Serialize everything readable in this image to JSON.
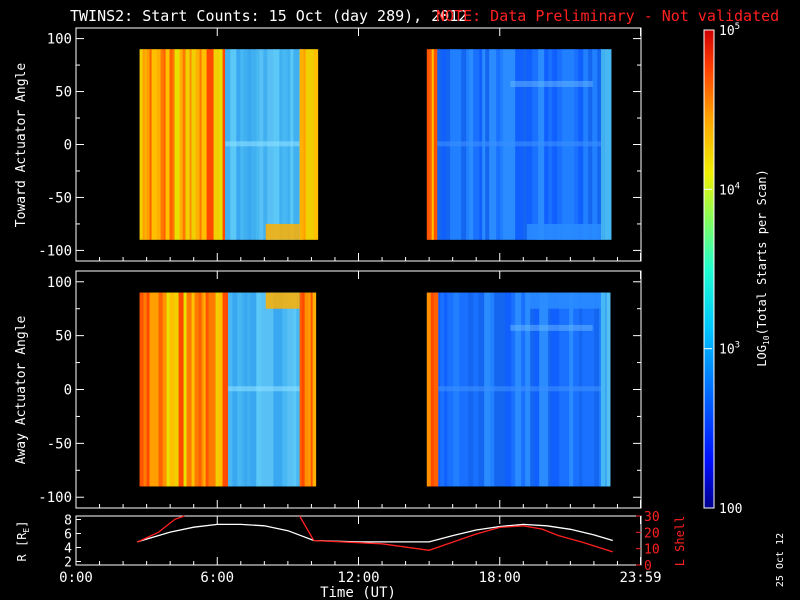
{
  "title": "TWINS2: Start Counts: 15 Oct (day 289), 2012",
  "note": "NOTE: Data Preliminary - Not validated",
  "date_stamp": "25 Oct 12",
  "colors": {
    "background": "#000000",
    "text": "#ffffff",
    "note": "#ff2020",
    "r_line": "#ffffff",
    "l_line": "#ff2020"
  },
  "chart_data": [
    {
      "type": "heatmap",
      "name": "toward",
      "ylabel": "Toward Actuator Angle",
      "ylim": [
        -110,
        110
      ],
      "yticks": [
        "100",
        "50",
        "0",
        "-50",
        "-100"
      ],
      "ytick_values": [
        100,
        50,
        0,
        -50,
        -100
      ],
      "angle_range": [
        -90,
        90
      ],
      "xlim_hours": [
        0,
        24
      ],
      "segments": [
        {
          "start_hour": 2.7,
          "end_hour": 10.1,
          "stripe_end_hour": 6.3,
          "blue_start_hour": 6.3,
          "fringe_start_hour": 9.5,
          "level": "high"
        },
        {
          "start_hour": 14.9,
          "end_hour": 22.6,
          "stripe_end_hour": 15.3,
          "blue_start_hour": 15.3,
          "fringe_start_hour": 22.3,
          "level": "low"
        }
      ]
    },
    {
      "type": "heatmap",
      "name": "away",
      "ylabel": "Away Actuator Angle",
      "ylim": [
        -110,
        110
      ],
      "yticks": [
        "100",
        "50",
        "0",
        "-50",
        "-100"
      ],
      "ytick_values": [
        100,
        50,
        0,
        -50,
        -100
      ],
      "angle_range": [
        -90,
        90
      ],
      "xlim_hours": [
        0,
        24
      ],
      "segments": [
        {
          "start_hour": 2.7,
          "end_hour": 10.1,
          "stripe_end_hour": 6.3,
          "blue_start_hour": 6.3,
          "fringe_start_hour": 9.5,
          "level": "high"
        },
        {
          "start_hour": 14.9,
          "end_hour": 22.6,
          "stripe_end_hour": 15.3,
          "blue_start_hour": 15.3,
          "fringe_start_hour": 22.3,
          "level": "low"
        }
      ]
    },
    {
      "type": "line",
      "name": "orbit",
      "xlabel": "Time (UT)",
      "xticks": [
        "0:00",
        "6:00",
        "12:00",
        "18:00",
        "23:59"
      ],
      "xtick_hours": [
        0,
        6,
        12,
        18,
        23.98
      ],
      "ylabel_left": "R [R",
      "ylabel_left_sub": "E",
      "ylabel_left_tail": "]",
      "ylabel_right": "L Shell",
      "ylim_left": [
        1.5,
        8.5
      ],
      "yticks_left": [
        "8",
        "6",
        "4",
        "2"
      ],
      "ytick_left_values": [
        8,
        6,
        4,
        2
      ],
      "ylim_right": [
        0,
        30
      ],
      "yticks_right": [
        "30",
        "20",
        "10",
        "0"
      ],
      "ytick_right_values": [
        30,
        20,
        10,
        0
      ],
      "series": [
        {
          "name": "R",
          "axis": "left",
          "color": "#ffffff",
          "x": [
            2.6,
            4,
            5,
            6,
            7,
            8,
            9,
            10.1,
            12,
            14,
            15,
            16,
            17,
            18,
            19,
            20,
            21,
            22,
            22.8
          ],
          "y": [
            4.8,
            6.2,
            6.9,
            7.3,
            7.3,
            7.1,
            6.4,
            5.0,
            4.8,
            4.8,
            4.8,
            5.7,
            6.5,
            7.0,
            7.3,
            7.1,
            6.6,
            5.8,
            5.0
          ]
        },
        {
          "name": "L Shell",
          "axis": "right",
          "color": "#ff2020",
          "x": [
            2.6,
            3.5,
            4.2,
            4.6,
            null,
            9.5,
            10.1,
            13,
            15,
            16,
            17,
            18,
            19,
            19.8,
            20.5,
            21.5,
            22.8
          ],
          "y": [
            14,
            20,
            28,
            30,
            null,
            30,
            15,
            13,
            9,
            14,
            19,
            23,
            24,
            22,
            18,
            14,
            8
          ]
        }
      ]
    }
  ],
  "colorbar": {
    "label_prefix": "LOG",
    "label_sub": "10",
    "label_suffix": "(Total Starts per Scan)",
    "ticks": [
      {
        "base": "10",
        "exp": "5",
        "value": 100000
      },
      {
        "base": "10",
        "exp": "4",
        "value": 10000
      },
      {
        "base": "10",
        "exp": "3",
        "value": 1000
      },
      {
        "base": "100",
        "exp": "",
        "value": 100
      }
    ],
    "range": [
      100,
      100000
    ]
  }
}
